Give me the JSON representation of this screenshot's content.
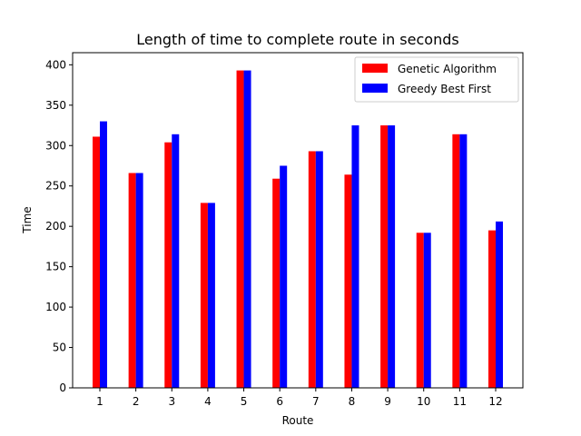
{
  "chart_data": {
    "type": "bar",
    "title": "Length of time to complete route in seconds",
    "xlabel": "Route",
    "ylabel": "Time",
    "categories": [
      "1",
      "2",
      "3",
      "4",
      "5",
      "6",
      "7",
      "8",
      "9",
      "10",
      "11",
      "12"
    ],
    "ylim": [
      0,
      415
    ],
    "yticks": [
      0,
      50,
      100,
      150,
      200,
      250,
      300,
      350,
      400
    ],
    "grid": false,
    "legend_position": "top-right",
    "series": [
      {
        "name": "Genetic Algorithm",
        "color": "#ff0000",
        "values": [
          311,
          266,
          304,
          229,
          393,
          259,
          293,
          264,
          325,
          192,
          314,
          195
        ]
      },
      {
        "name": "Greedy Best First",
        "color": "#0000ff",
        "values": [
          330,
          266,
          314,
          229,
          393,
          275,
          293,
          325,
          325,
          192,
          314,
          206
        ]
      }
    ]
  }
}
